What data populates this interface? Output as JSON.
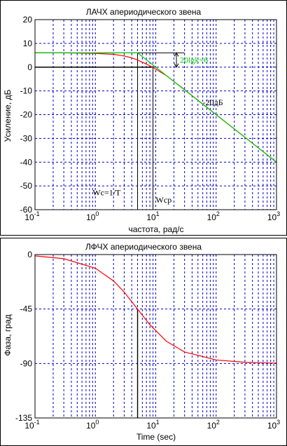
{
  "chart_data": [
    {
      "type": "line",
      "title": "ЛАЧХ апериодического звена",
      "xlabel": "частота, рад/с",
      "ylabel": "Усиление, дБ",
      "xscale": "log",
      "xlim": [
        0.1,
        1000
      ],
      "ylim": [
        -60,
        20
      ],
      "xtick_decades": [
        -1,
        0,
        1,
        2,
        3
      ],
      "yticks": [
        20,
        10,
        0,
        -10,
        -20,
        -30,
        -40,
        -50,
        -60
      ],
      "grid": true,
      "gain_k_db": 6,
      "corner_w": 5,
      "crossover_w": 9,
      "series": [
        {
          "color": "#ff0000",
          "x": [
            0.1,
            0.3,
            1,
            2,
            3,
            4,
            5,
            7,
            9,
            15,
            30,
            100,
            300,
            1000
          ],
          "y": [
            6,
            6,
            5.8,
            5.4,
            4.7,
            3.9,
            3.0,
            1.3,
            -0.1,
            -3.6,
            -9.5,
            -20,
            -29.5,
            -40
          ]
        },
        {
          "color": "#00cc00",
          "x": [
            0.1,
            5,
            1000
          ],
          "y": [
            6,
            6,
            -40
          ]
        }
      ],
      "annotations": {
        "gain": "20lgk=6",
        "slope": "-20дБ",
        "corner": "Wc=1/T",
        "crossover": "Wcp"
      },
      "colors": {
        "curve": "#ff0000",
        "asymptote": "#00cc00",
        "grid": "#0000cc"
      }
    },
    {
      "type": "line",
      "title": "ЛФЧХ апериодического звена",
      "xlabel": "Time (sec)",
      "ylabel": "Фаза, град",
      "xscale": "log",
      "xlim": [
        0.1,
        1000
      ],
      "ylim": [
        -135,
        0
      ],
      "xtick_decades": [
        -1,
        0,
        1,
        2,
        3
      ],
      "yticks": [
        0,
        -45,
        -90,
        -135
      ],
      "grid": true,
      "marker_w": 5,
      "series": [
        {
          "color": "#ff0000",
          "x": [
            0.1,
            0.3,
            1,
            2,
            3,
            5,
            8,
            15,
            30,
            100,
            300,
            1000
          ],
          "y": [
            -1.1,
            -3.4,
            -11.3,
            -21.8,
            -31,
            -45,
            -58,
            -71.6,
            -80.5,
            -87.1,
            -89,
            -89.7
          ]
        }
      ],
      "colors": {
        "curve": "#ff0000",
        "grid": "#0000cc"
      }
    }
  ]
}
